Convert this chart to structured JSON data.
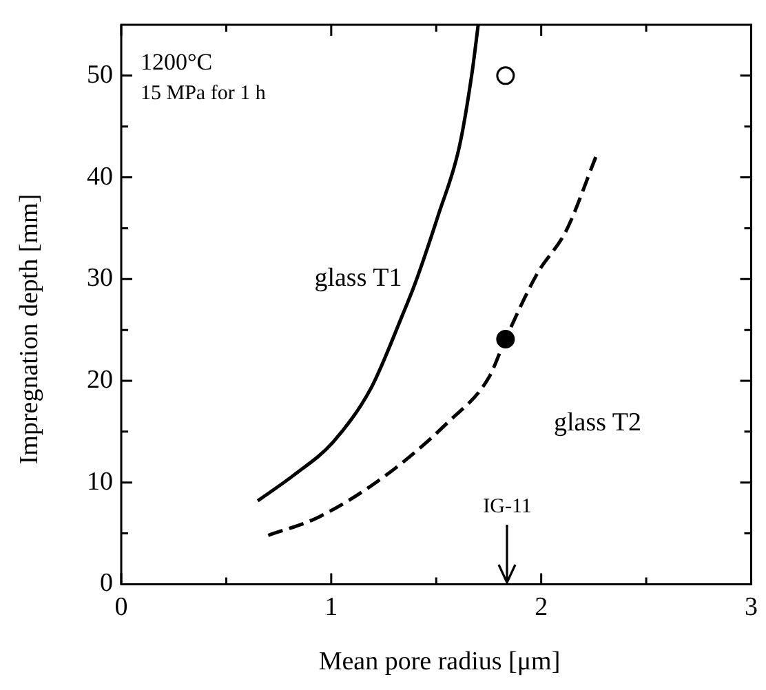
{
  "chart_data": {
    "type": "line",
    "xlabel": "Mean pore radius [μm]",
    "ylabel": "Impregnation depth [mm]",
    "xlim": [
      0,
      3
    ],
    "xticks": [
      0,
      {
        "value": 0.5,
        "label": null
      },
      1,
      {
        "value": 1.5,
        "label": null
      },
      2,
      {
        "value": 2.5,
        "label": null
      },
      3
    ],
    "ylim": [
      0,
      55
    ],
    "yticks": [
      0,
      {
        "value": 5,
        "label": null
      },
      10,
      {
        "value": 15,
        "label": null
      },
      20,
      {
        "value": 25,
        "label": null
      },
      30,
      {
        "value": 35,
        "label": null
      },
      40,
      {
        "value": 45,
        "label": null
      },
      50
    ],
    "grid": false,
    "legend": false,
    "series": [
      {
        "name": "glass T1",
        "color": "#000000",
        "line_style": "solid",
        "marker": "none",
        "x": [
          0.65,
          0.82,
          1.01,
          1.19,
          1.34,
          1.4,
          1.51,
          1.61,
          1.67,
          1.7
        ],
        "values": [
          8.2,
          10.7,
          14,
          19.3,
          26.5,
          29.6,
          36.3,
          43,
          50.2,
          55
        ]
      },
      {
        "name": "glass T2",
        "color": "#000000",
        "line_style": "dashed",
        "marker": "none",
        "x": [
          0.7,
          0.94,
          1.26,
          1.56,
          1.75,
          1.83,
          1.98,
          2.12,
          2.26
        ],
        "values": [
          4.8,
          6.6,
          10.7,
          16,
          20.3,
          24.1,
          30.5,
          34.8,
          42
        ]
      },
      {
        "type": "scatter",
        "color": "#ffffff",
        "marker": "circle",
        "x": [
          1.83
        ],
        "values": [
          50
        ]
      },
      {
        "type": "scatter",
        "color": "#000000",
        "marker": "circle",
        "x": [
          1.83
        ],
        "values": [
          24.1
        ]
      }
    ],
    "annotations": [
      "1200°C",
      "15 MPa for 1 h",
      "IG-11"
    ]
  }
}
